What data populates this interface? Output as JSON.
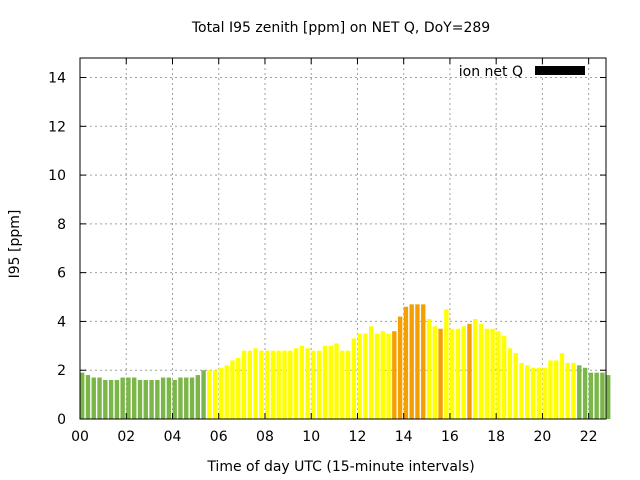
{
  "chart_data": {
    "type": "bar",
    "title": "Total I95 zenith [ppm] on NET Q, DoY=289",
    "xlabel": "Time of day UTC (15-minute intervals)",
    "ylabel": "I95 [ppm]",
    "ylim": [
      0,
      14.8
    ],
    "xlim": [
      0,
      22.75
    ],
    "yticks": [
      "0",
      "2",
      "4",
      "6",
      "8",
      "10",
      "12",
      "14"
    ],
    "xticks": [
      "00",
      "02",
      "04",
      "06",
      "08",
      "10",
      "12",
      "14",
      "16",
      "18",
      "20",
      "22"
    ],
    "grid": true,
    "legend": {
      "label": "ion net Q",
      "placement": "top-right",
      "color": "#000000"
    },
    "color_scale": {
      "green": "#7ab648",
      "yellow": "#ffff00",
      "orange": "#f5a000"
    },
    "bar_width_hours": 0.19,
    "values": [
      1.9,
      1.8,
      1.7,
      1.7,
      1.6,
      1.6,
      1.6,
      1.7,
      1.7,
      1.7,
      1.6,
      1.6,
      1.6,
      1.6,
      1.7,
      1.7,
      1.6,
      1.7,
      1.7,
      1.7,
      1.8,
      2.0,
      2.0,
      2.0,
      2.1,
      2.2,
      2.4,
      2.5,
      2.8,
      2.8,
      2.9,
      2.8,
      2.8,
      2.8,
      2.8,
      2.8,
      2.8,
      2.9,
      3.0,
      2.9,
      2.8,
      2.8,
      3.0,
      3.0,
      3.1,
      2.8,
      2.8,
      3.3,
      3.5,
      3.5,
      3.8,
      3.5,
      3.6,
      3.5,
      3.6,
      4.2,
      4.6,
      4.7,
      4.7,
      4.7,
      4.1,
      3.8,
      3.7,
      4.5,
      3.7,
      3.7,
      3.8,
      3.9,
      4.1,
      3.9,
      3.7,
      3.7,
      3.6,
      3.4,
      2.9,
      2.7,
      2.3,
      2.2,
      2.1,
      2.1,
      2.1,
      2.4,
      2.4,
      2.7,
      2.3,
      2.3,
      2.2,
      2.1,
      1.9,
      1.9,
      1.9,
      1.8
    ],
    "levels": [
      "G",
      "G",
      "G",
      "G",
      "G",
      "G",
      "G",
      "G",
      "G",
      "G",
      "G",
      "G",
      "G",
      "G",
      "G",
      "G",
      "G",
      "G",
      "G",
      "G",
      "G",
      "G",
      "Y",
      "Y",
      "Y",
      "Y",
      "Y",
      "Y",
      "Y",
      "Y",
      "Y",
      "Y",
      "Y",
      "Y",
      "Y",
      "Y",
      "Y",
      "Y",
      "Y",
      "Y",
      "Y",
      "Y",
      "Y",
      "Y",
      "Y",
      "Y",
      "Y",
      "Y",
      "Y",
      "Y",
      "Y",
      "Y",
      "Y",
      "Y",
      "O",
      "O",
      "O",
      "O",
      "O",
      "O",
      "Y",
      "Y",
      "O",
      "Y",
      "Y",
      "Y",
      "Y",
      "O",
      "Y",
      "Y",
      "Y",
      "Y",
      "Y",
      "Y",
      "Y",
      "Y",
      "Y",
      "Y",
      "Y",
      "Y",
      "Y",
      "Y",
      "Y",
      "Y",
      "Y",
      "Y",
      "G",
      "G",
      "G",
      "G",
      "G",
      "G"
    ]
  }
}
